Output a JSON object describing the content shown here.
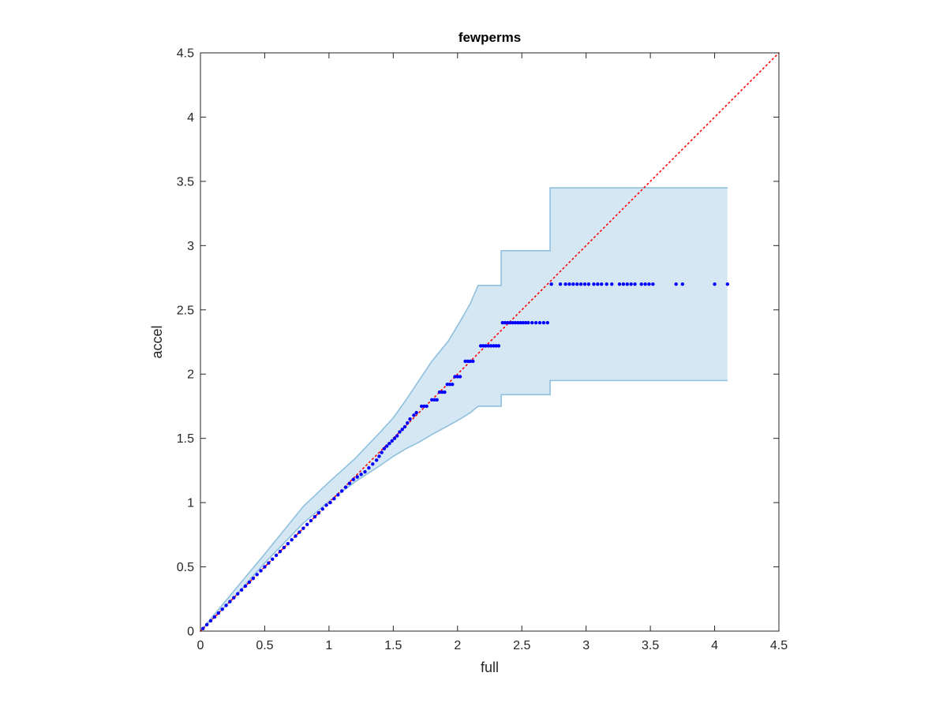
{
  "chart_data": {
    "type": "scatter",
    "title": "fewperms",
    "xlabel": "full",
    "ylabel": "accel",
    "xlim": [
      0,
      4.5
    ],
    "ylim": [
      0,
      4.5
    ],
    "xticks": [
      "0",
      "0.5",
      "1",
      "1.5",
      "2",
      "2.5",
      "3",
      "3.5",
      "4",
      "4.5"
    ],
    "yticks": [
      "0",
      "0.5",
      "1",
      "1.5",
      "2",
      "2.5",
      "3",
      "3.5",
      "4",
      "4.5"
    ],
    "grid": false,
    "reference_line": {
      "from": [
        0,
        0
      ],
      "to": [
        4.5,
        4.5
      ],
      "color": "#ff0000",
      "style": "dotted"
    },
    "band": {
      "fill_color": "#d6e7f4",
      "edge_color": "#8fc0dd",
      "upper": [
        [
          0,
          0
        ],
        [
          0.25,
          0.3
        ],
        [
          0.5,
          0.6
        ],
        [
          0.8,
          0.97
        ],
        [
          1.0,
          1.16
        ],
        [
          1.2,
          1.34
        ],
        [
          1.4,
          1.55
        ],
        [
          1.5,
          1.66
        ],
        [
          1.6,
          1.8
        ],
        [
          1.7,
          1.95
        ],
        [
          1.8,
          2.1
        ],
        [
          1.93,
          2.26
        ],
        [
          2.02,
          2.41
        ],
        [
          2.1,
          2.55
        ],
        [
          2.16,
          2.69
        ],
        [
          2.34,
          2.69
        ],
        [
          2.34,
          2.96
        ],
        [
          2.72,
          2.96
        ],
        [
          2.72,
          3.45
        ],
        [
          4.1,
          3.45
        ]
      ],
      "lower": [
        [
          4.1,
          1.95
        ],
        [
          2.72,
          1.95
        ],
        [
          2.72,
          1.84
        ],
        [
          2.34,
          1.84
        ],
        [
          2.34,
          1.75
        ],
        [
          2.16,
          1.75
        ],
        [
          2.1,
          1.7
        ],
        [
          2.02,
          1.65
        ],
        [
          1.93,
          1.6
        ],
        [
          1.8,
          1.53
        ],
        [
          1.7,
          1.47
        ],
        [
          1.6,
          1.42
        ],
        [
          1.5,
          1.36
        ],
        [
          1.4,
          1.29
        ],
        [
          1.2,
          1.16
        ],
        [
          1.0,
          1.01
        ],
        [
          0.8,
          0.84
        ],
        [
          0.5,
          0.53
        ],
        [
          0.25,
          0.25
        ],
        [
          0,
          0
        ]
      ]
    },
    "series": [
      {
        "color": "#0000ff",
        "points": [
          [
            0.02,
            0.02
          ],
          [
            0.05,
            0.05
          ],
          [
            0.08,
            0.08
          ],
          [
            0.11,
            0.11
          ],
          [
            0.14,
            0.14
          ],
          [
            0.17,
            0.17
          ],
          [
            0.2,
            0.2
          ],
          [
            0.23,
            0.23
          ],
          [
            0.26,
            0.26
          ],
          [
            0.29,
            0.29
          ],
          [
            0.32,
            0.32
          ],
          [
            0.35,
            0.35
          ],
          [
            0.38,
            0.38
          ],
          [
            0.41,
            0.41
          ],
          [
            0.44,
            0.44
          ],
          [
            0.47,
            0.47
          ],
          [
            0.5,
            0.5
          ],
          [
            0.53,
            0.53
          ],
          [
            0.56,
            0.56
          ],
          [
            0.59,
            0.59
          ],
          [
            0.62,
            0.62
          ],
          [
            0.65,
            0.65
          ],
          [
            0.68,
            0.68
          ],
          [
            0.71,
            0.71
          ],
          [
            0.74,
            0.74
          ],
          [
            0.77,
            0.77
          ],
          [
            0.8,
            0.8
          ],
          [
            0.83,
            0.83
          ],
          [
            0.86,
            0.86
          ],
          [
            0.89,
            0.89
          ],
          [
            0.92,
            0.92
          ],
          [
            0.95,
            0.95
          ],
          [
            0.98,
            0.98
          ],
          [
            1.01,
            1.0
          ],
          [
            1.04,
            1.03
          ],
          [
            1.07,
            1.06
          ],
          [
            1.1,
            1.09
          ],
          [
            1.13,
            1.12
          ],
          [
            1.16,
            1.15
          ],
          [
            1.19,
            1.18
          ],
          [
            1.22,
            1.2
          ],
          [
            1.25,
            1.22
          ],
          [
            1.28,
            1.24
          ],
          [
            1.31,
            1.27
          ],
          [
            1.34,
            1.3
          ],
          [
            1.37,
            1.33
          ],
          [
            1.39,
            1.36
          ],
          [
            1.41,
            1.39
          ],
          [
            1.43,
            1.42
          ],
          [
            1.45,
            1.44
          ],
          [
            1.47,
            1.46
          ],
          [
            1.49,
            1.48
          ],
          [
            1.51,
            1.5
          ],
          [
            1.53,
            1.52
          ],
          [
            1.55,
            1.55
          ],
          [
            1.57,
            1.57
          ],
          [
            1.59,
            1.59
          ],
          [
            1.61,
            1.62
          ],
          [
            1.63,
            1.65
          ],
          [
            1.66,
            1.68
          ],
          [
            1.68,
            1.7
          ],
          [
            1.72,
            1.75
          ],
          [
            1.74,
            1.75
          ],
          [
            1.76,
            1.75
          ],
          [
            1.8,
            1.8
          ],
          [
            1.82,
            1.8
          ],
          [
            1.84,
            1.8
          ],
          [
            1.86,
            1.86
          ],
          [
            1.88,
            1.86
          ],
          [
            1.9,
            1.86
          ],
          [
            1.92,
            1.92
          ],
          [
            1.94,
            1.92
          ],
          [
            1.96,
            1.92
          ],
          [
            1.98,
            1.98
          ],
          [
            2.0,
            1.98
          ],
          [
            2.02,
            1.98
          ],
          [
            2.06,
            2.1
          ],
          [
            2.08,
            2.1
          ],
          [
            2.1,
            2.1
          ],
          [
            2.12,
            2.1
          ],
          [
            2.18,
            2.22
          ],
          [
            2.2,
            2.22
          ],
          [
            2.22,
            2.22
          ],
          [
            2.24,
            2.22
          ],
          [
            2.26,
            2.22
          ],
          [
            2.28,
            2.22
          ],
          [
            2.3,
            2.22
          ],
          [
            2.32,
            2.22
          ],
          [
            2.35,
            2.4
          ],
          [
            2.37,
            2.4
          ],
          [
            2.39,
            2.4
          ],
          [
            2.41,
            2.4
          ],
          [
            2.43,
            2.4
          ],
          [
            2.45,
            2.4
          ],
          [
            2.47,
            2.4
          ],
          [
            2.49,
            2.4
          ],
          [
            2.51,
            2.4
          ],
          [
            2.53,
            2.4
          ],
          [
            2.55,
            2.4
          ],
          [
            2.58,
            2.4
          ],
          [
            2.61,
            2.4
          ],
          [
            2.64,
            2.4
          ],
          [
            2.67,
            2.4
          ],
          [
            2.7,
            2.4
          ],
          [
            2.73,
            2.7
          ],
          [
            2.8,
            2.7
          ],
          [
            2.84,
            2.7
          ],
          [
            2.87,
            2.7
          ],
          [
            2.9,
            2.7
          ],
          [
            2.93,
            2.7
          ],
          [
            2.96,
            2.7
          ],
          [
            2.99,
            2.7
          ],
          [
            3.02,
            2.7
          ],
          [
            3.06,
            2.7
          ],
          [
            3.09,
            2.7
          ],
          [
            3.12,
            2.7
          ],
          [
            3.16,
            2.7
          ],
          [
            3.2,
            2.7
          ],
          [
            3.26,
            2.7
          ],
          [
            3.29,
            2.7
          ],
          [
            3.32,
            2.7
          ],
          [
            3.35,
            2.7
          ],
          [
            3.38,
            2.7
          ],
          [
            3.43,
            2.7
          ],
          [
            3.46,
            2.7
          ],
          [
            3.49,
            2.7
          ],
          [
            3.52,
            2.7
          ],
          [
            3.7,
            2.7
          ],
          [
            3.75,
            2.7
          ],
          [
            4.0,
            2.7
          ],
          [
            4.1,
            2.7
          ]
        ]
      }
    ]
  }
}
